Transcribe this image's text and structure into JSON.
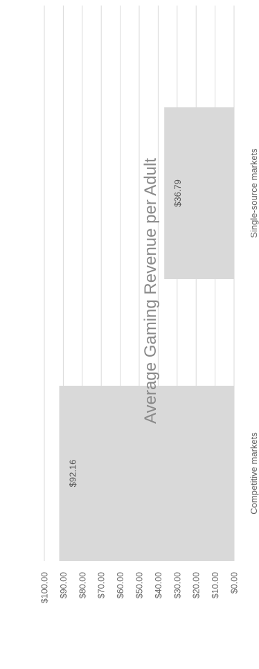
{
  "chart_data": {
    "type": "bar",
    "orientation": "vertical",
    "title": "Average Gaming Revenue per Adult",
    "categories": [
      "Competitive markets",
      "Single-source markets"
    ],
    "values": [
      92.16,
      36.79
    ],
    "data_labels": [
      "$92.16",
      "$36.79"
    ],
    "ylim": [
      0,
      100
    ],
    "y_ticks": [
      "$0.00",
      "$10.00",
      "$20.00",
      "$30.00",
      "$40.00",
      "$50.00",
      "$60.00",
      "$70.00",
      "$80.00",
      "$90.00",
      "$100.00"
    ],
    "grid": true,
    "legend": "none",
    "colors": {
      "bar": "#d9d9d9",
      "grid": "#d9d9d9",
      "title": "#8a8a8a",
      "text": "#666666"
    }
  }
}
